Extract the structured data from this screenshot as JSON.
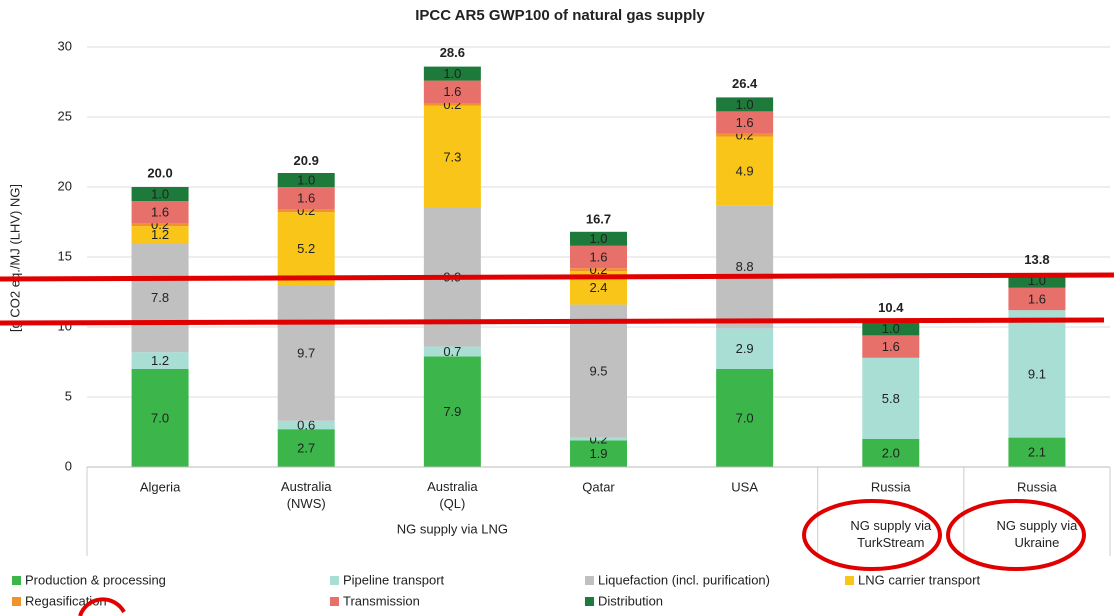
{
  "chart_data": {
    "type": "stacked_bar",
    "title": "IPCC AR5 GWP100 of natural gas supply",
    "y_label": "[g CO2 eq./MJ (LHV) NG]",
    "categories": [
      "Algeria",
      "Australia\n(NWS)",
      "Australia\n(QL)",
      "Qatar",
      "USA",
      "Russia",
      "Russia"
    ],
    "groups": [
      "NG supply via LNG",
      "NG supply via\nTurkStream",
      "NG supply via\nUkraine"
    ],
    "ylim": [
      0,
      30
    ],
    "yticks": [
      0,
      5,
      10,
      15,
      20,
      25,
      30
    ],
    "grid": true,
    "series": [
      {
        "name": "Production & processing",
        "color": "#3cb64a",
        "values": [
          7.0,
          2.7,
          7.9,
          1.9,
          7.0,
          2.0,
          2.1
        ],
        "value_labels": [
          "7.0",
          "2.7",
          "7.9",
          "1.9",
          "7.0",
          "2.0",
          "2.1"
        ]
      },
      {
        "name": "Pipeline transport",
        "color": "#a8ded4",
        "values": [
          1.2,
          0.6,
          0.7,
          0.2,
          2.9,
          5.8,
          9.1
        ],
        "value_labels": [
          "1.2",
          "0.6",
          "0.7",
          "0.2",
          "2.9",
          "5.8",
          "9.1"
        ]
      },
      {
        "name": "Liquefaction (incl. purification)",
        "color": "#c0c0c0",
        "values": [
          7.8,
          9.7,
          9.9,
          9.5,
          8.8,
          null,
          null
        ],
        "value_labels": [
          "7.8",
          "9.7",
          "9.9",
          "9.5",
          "8.8",
          null,
          null
        ]
      },
      {
        "name": "LNG carrier transport",
        "color": "#f8c518",
        "values": [
          1.2,
          5.2,
          7.3,
          2.4,
          4.9,
          null,
          null
        ],
        "value_labels": [
          "1.2",
          "5.2",
          "7.3",
          "2.4",
          "4.9",
          null,
          null
        ]
      },
      {
        "name": "Regasification",
        "color": "#f2922a",
        "values": [
          0.2,
          0.2,
          0.2,
          0.2,
          0.2,
          null,
          null
        ],
        "value_labels": [
          "0.2",
          "0.2",
          "0.2",
          "0.2",
          "0.2",
          null,
          null
        ]
      },
      {
        "name": "Transmission",
        "color": "#e8706a",
        "values": [
          1.6,
          1.6,
          1.6,
          1.6,
          1.6,
          1.6,
          1.6
        ],
        "value_labels": [
          "1.6",
          "1.6",
          "1.6",
          "1.6",
          "1.6",
          "1.6",
          "1.6"
        ]
      },
      {
        "name": "Distribution",
        "color": "#1e7a3a",
        "values": [
          1.0,
          1.0,
          1.0,
          1.0,
          1.0,
          1.0,
          1.0
        ],
        "value_labels": [
          "1.0",
          "1.0",
          "1.0",
          "1.0",
          "1.0",
          "1.0",
          "1.0"
        ]
      }
    ],
    "totals": {
      "values": [
        20.0,
        20.9,
        28.6,
        16.7,
        26.4,
        10.4,
        13.8
      ],
      "value_labels": [
        "20.0",
        "20.9",
        "28.6",
        "16.7",
        "26.4",
        "10.4",
        "13.8"
      ]
    }
  }
}
